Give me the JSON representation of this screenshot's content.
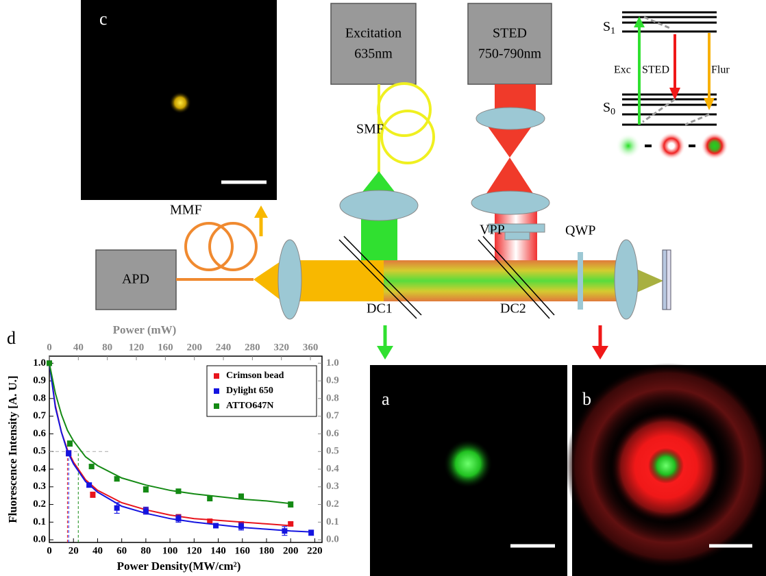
{
  "panels": {
    "a": "a",
    "b": "b",
    "c": "c",
    "d": "d"
  },
  "diagram": {
    "excitation": [
      "Excitation",
      "635nm"
    ],
    "sted": [
      "STED",
      "750-790nm"
    ],
    "labels": {
      "smf": "SMF",
      "mmf": "MMF",
      "apd": "APD",
      "vpp": "VPP",
      "qwp": "QWP",
      "dc1": "DC1",
      "dc2": "DC2"
    },
    "energy": {
      "s1": {
        "letter": "S",
        "sub": "1"
      },
      "s0": {
        "letter": "S",
        "sub": "0"
      },
      "exc": "Exc",
      "sted": "STED",
      "flur": "Flur"
    }
  },
  "chart_data": {
    "type": "scatter",
    "xlabel": "Power Density(MW/cm²)",
    "ylabel": "Fluorescence Intensity [A. U.]",
    "x2label": "Power (mW)",
    "xlim": [
      0,
      226
    ],
    "xticks": [
      0,
      20,
      40,
      60,
      80,
      100,
      120,
      140,
      160,
      180,
      200,
      220
    ],
    "x2lim": [
      0,
      376
    ],
    "x2ticks": [
      0,
      40,
      80,
      120,
      160,
      200,
      240,
      280,
      320,
      360
    ],
    "ylim": [
      -0.015,
      1.04
    ],
    "yticks": [
      {
        "value": 0,
        "label": "0.0"
      },
      0.1,
      0.2,
      0.3,
      0.4,
      0.5,
      0.6,
      0.7,
      0.8,
      0.9,
      {
        "value": 1,
        "label": "1.0"
      }
    ],
    "y2lim": [
      -0.015,
      1.04
    ],
    "y2ticks": [
      {
        "value": 0,
        "label": "0.0"
      },
      0.1,
      0.2,
      0.3,
      0.4,
      0.5,
      0.6,
      0.7,
      0.8,
      0.9,
      {
        "value": 1,
        "label": "1.0"
      }
    ],
    "half_level": 0.5,
    "legend": "upper right",
    "series": [
      {
        "name": "Crimson bead",
        "color": "#e8141c",
        "x": [
          0,
          16,
          36,
          80,
          107,
          133,
          159,
          200
        ],
        "values": [
          1.0,
          0.49,
          0.255,
          0.165,
          0.13,
          0.105,
          0.09,
          0.09
        ],
        "errors": [
          0.01,
          0.015,
          0.015,
          0.015,
          0.012,
          0.01,
          0.012,
          0.01
        ],
        "half_x": 15,
        "fit": {
          "x": [
            0,
            5,
            10,
            15,
            20,
            30,
            40,
            60,
            80,
            100,
            120,
            140,
            160,
            180,
            200
          ],
          "values": [
            1.0,
            0.76,
            0.61,
            0.51,
            0.44,
            0.34,
            0.28,
            0.21,
            0.17,
            0.14,
            0.12,
            0.11,
            0.1,
            0.09,
            0.08
          ]
        }
      },
      {
        "name": "Dylight 650",
        "color": "#1414e0",
        "x": [
          0,
          16,
          33,
          56,
          80,
          107,
          138,
          159,
          195,
          217
        ],
        "values": [
          1.0,
          0.49,
          0.31,
          0.18,
          0.165,
          0.12,
          0.08,
          0.075,
          0.05,
          0.04
        ],
        "errors": [
          0.01,
          0.015,
          0.012,
          0.03,
          0.02,
          0.02,
          0.012,
          0.02,
          0.025,
          0.015
        ],
        "half_x": 16,
        "fit": {
          "x": [
            0,
            5,
            10,
            15,
            20,
            30,
            40,
            60,
            80,
            100,
            120,
            140,
            160,
            180,
            200,
            215
          ],
          "values": [
            1.0,
            0.75,
            0.61,
            0.5,
            0.43,
            0.33,
            0.27,
            0.19,
            0.15,
            0.12,
            0.1,
            0.085,
            0.07,
            0.06,
            0.05,
            0.045
          ]
        }
      },
      {
        "name": "ATTO647N",
        "color": "#148a14",
        "x": [
          0,
          17,
          35,
          56,
          80,
          107,
          133,
          159,
          200
        ],
        "values": [
          1.0,
          0.545,
          0.415,
          0.345,
          0.285,
          0.275,
          0.235,
          0.245,
          0.2
        ],
        "errors": [
          0.01,
          0.015,
          0.01,
          0.012,
          0.015,
          0.012,
          0.015,
          0.015,
          0.015
        ],
        "half_x": 24,
        "fit": {
          "x": [
            0,
            5,
            10,
            15,
            20,
            30,
            40,
            60,
            80,
            100,
            120,
            140,
            160,
            180,
            200
          ],
          "values": [
            1.0,
            0.83,
            0.71,
            0.62,
            0.56,
            0.47,
            0.42,
            0.35,
            0.31,
            0.28,
            0.26,
            0.245,
            0.23,
            0.22,
            0.205
          ]
        }
      }
    ]
  }
}
